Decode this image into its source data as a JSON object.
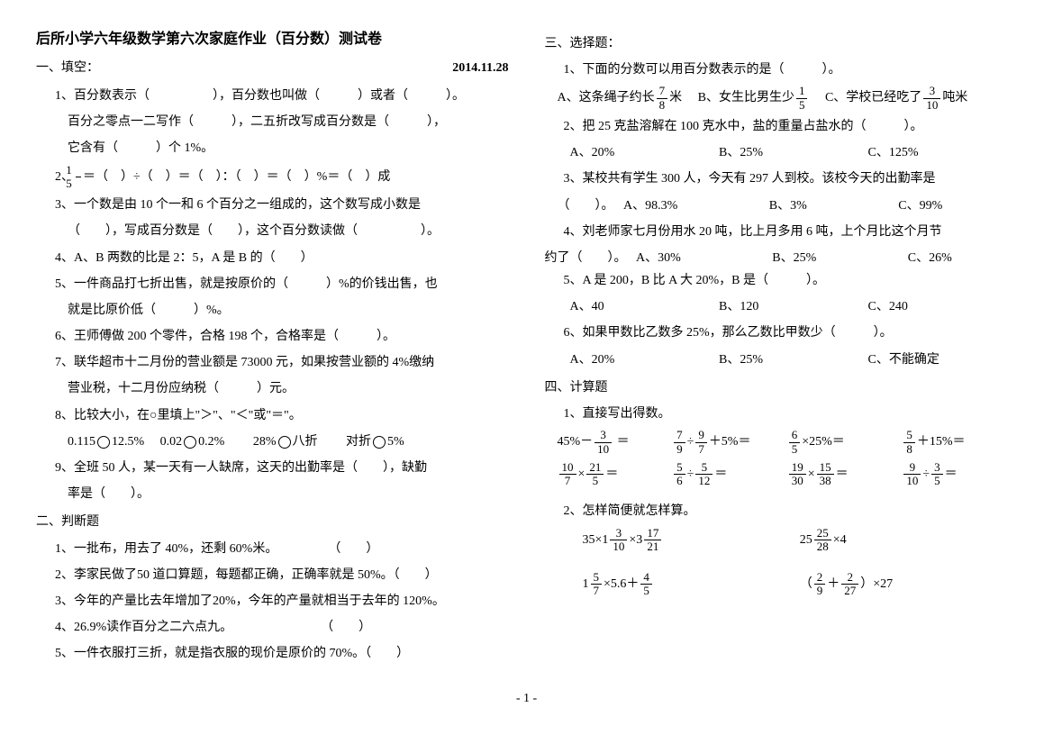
{
  "title": "后所小学六年级数学第六次家庭作业（百分数）测试卷",
  "date": "2014.11.28",
  "sec1_head": "一、填空：",
  "s1q1a": "1、百分数表示（　　　　　），百分数也叫做（　　　）或者（　　　）。",
  "s1q1b": "百分之零点一二写作（　　　），二五折改写成百分数是（　　　），",
  "s1q1c": "它含有（　　　）个 1%。",
  "s1q2": "＝（　）÷（　）＝（　）：（　）＝（　）%＝（　）成",
  "s1q3a": "3、一个数是由 10 个一和 6 个百分之一组成的，这个数写成小数是",
  "s1q3b": "（　　），写成百分数是（　　），这个百分数读做（　　　　　）。",
  "s1q4": "4、A、B 两数的比是 2：5，A 是 B 的（　　）",
  "s1q5a": "5、一件商品打七折出售，就是按原价的（　　　）%的价钱出售，也",
  "s1q5b": "就是比原价低（　　　）%。",
  "s1q6": "6、王师傅做 200 个零件，合格 198 个，合格率是（　　　）。",
  "s1q7a": "7、联华超市十二月份的营业额是 73000 元，如果按营业额的 4%缴纳",
  "s1q7b": "营业税，十二月份应纳税（　　　）元。",
  "s1q8a": "8、比较大小，在○里填上\"＞\"、\"＜\"或\"＝\"。",
  "s1q8b_1": "0.115",
  "s1q8b_2": "12.5%",
  "s1q8b_3": "0.02",
  "s1q8b_4": "0.2%",
  "s1q8b_5": "28%",
  "s1q8b_6": "八折",
  "s1q8b_7": "对折",
  "s1q8b_8": "5%",
  "s1q9a": "9、全班 50 人，某一天有一人缺席，这天的出勤率是（　　），缺勤",
  "s1q9b": "率是（　　）。",
  "sec2_head": "二、判断题",
  "s2q1": "1、一批布，用去了 40%，还剩 60%米。　　　　　（　　）",
  "s2q2": "2、李家民做了50 道口算题，每题都正确，正确率就是 50%。（　　）",
  "s2q3": "3、今年的产量比去年增加了20%，今年的产量就相当于去年的 120%。",
  "s2q4": "4、26.9%读作百分之二六点九。　　　　　　　　（　　）",
  "s2q5": "5、一件衣服打三折，就是指衣服的现价是原价的 70%。（　　）",
  "sec3_head": "三、选择题：",
  "s3q1": "1、下面的分数可以用百分数表示的是（　　　）。",
  "s3q1a": "A、这条绳子约长",
  "s3q1a2": "米",
  "s3q1b": "B、女生比男生少",
  "s3q1c": "C、学校已经吃了",
  "s3q1c2": "吨米",
  "s3q2": "2、把 25 克盐溶解在 100 克水中，盐的重量占盐水的（　　　）。",
  "s3q2a": "A、20%",
  "s3q2b": "B、25%",
  "s3q2c": "C、125%",
  "s3q3": "3、某校共有学生 300 人，今天有 297 人到校。该校今天的出勤率是",
  "s3q3_2": "（　　）。",
  "s3q3a": "A、98.3%",
  "s3q3b": "B、3%",
  "s3q3c": "C、99%",
  "s3q4": "4、刘老师家七月份用水 20 吨，比上月多用 6 吨，上个月比这个月节",
  "s3q4_2": "约了（　　）。",
  "s3q4a": "A、30%",
  "s3q4b": "B、25%",
  "s3q4c": "C、26%",
  "s3q5": "5、A 是 200，B 比 A 大 20%，B 是（　　　）。",
  "s3q5a": "A、40",
  "s3q5b": "B、120",
  "s3q5c": "C、240",
  "s3q6": "6、如果甲数比乙数多 25%，那么乙数比甲数少（　　　）。",
  "s3q6a": "A、20%",
  "s3q6b": "B、25%",
  "s3q6c": "C、不能确定",
  "sec4_head": "四、计算题",
  "s4q1": "1、直接写出得数。",
  "s4q2": "2、怎样简便就怎样算。",
  "pagenum": "- 1 -"
}
